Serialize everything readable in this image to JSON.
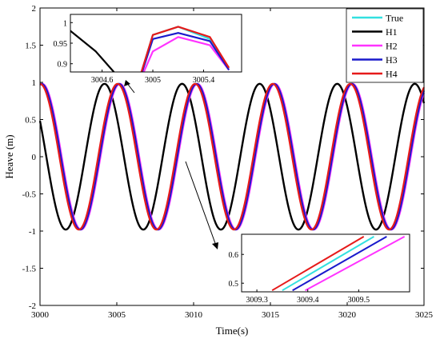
{
  "chart_data": {
    "type": "line",
    "xlabel": "Time(s)",
    "ylabel": "Heave (m)",
    "xlim": [
      3000,
      3025
    ],
    "ylim": [
      -2,
      2
    ],
    "xticks": [
      3000,
      3005,
      3010,
      3015,
      3020,
      3025
    ],
    "yticks": [
      -2,
      -1.5,
      -1,
      -0.5,
      0,
      0.5,
      1,
      1.5,
      2
    ],
    "grid": false,
    "legend_position": "top-right",
    "wave": {
      "amplitude": 0.98,
      "period_s": 5.05,
      "samples": [
        {
          "x": 3000.0,
          "y": 0.97
        },
        {
          "x": 3001.26,
          "y": 0.0
        },
        {
          "x": 3002.52,
          "y": -0.98
        },
        {
          "x": 3003.79,
          "y": 0.0
        },
        {
          "x": 3005.05,
          "y": 0.98
        }
      ]
    },
    "series": [
      {
        "name": "True",
        "color": "#33e0e0",
        "peak_times": [
          3000.05,
          3005.1,
          3010.15,
          3015.2,
          3020.25
        ]
      },
      {
        "name": "H1",
        "color": "#000000",
        "peak_times": [
          3004.2,
          3009.25,
          3014.3,
          3019.35,
          3024.4
        ]
      },
      {
        "name": "H2",
        "color": "#ff33ff",
        "peak_times": [
          3000.15,
          3005.2,
          3010.25,
          3015.3,
          3020.35
        ]
      },
      {
        "name": "H3",
        "color": "#1a1acc",
        "peak_times": [
          3000.1,
          3005.15,
          3010.2,
          3015.25,
          3020.3
        ]
      },
      {
        "name": "H4",
        "color": "#e61a1a",
        "peak_times": [
          3000.0,
          3005.05,
          3010.1,
          3015.15,
          3020.2
        ]
      }
    ],
    "insets": [
      {
        "position": "top-left",
        "xlim": [
          3004.35,
          3005.7
        ],
        "ylim": [
          0.88,
          1.02
        ],
        "xticks": [
          3004.6,
          3005,
          3005.4
        ],
        "yticks": [
          0.9,
          0.95,
          1
        ],
        "series": [
          {
            "name": "H1",
            "x": [
              3004.35,
              3004.55,
              3004.75
            ],
            "y": [
              0.98,
              0.93,
              0.86
            ]
          },
          {
            "name": "True",
            "x": [
              3004.9,
              3005.0,
              3005.2,
              3005.45,
              3005.6
            ],
            "y": [
              0.87,
              0.97,
              0.99,
              0.96,
              0.89
            ]
          },
          {
            "name": "H2",
            "x": [
              3004.9,
              3005.0,
              3005.2,
              3005.45,
              3005.6
            ],
            "y": [
              0.86,
              0.93,
              0.965,
              0.945,
              0.885
            ]
          },
          {
            "name": "H3",
            "x": [
              3004.9,
              3005.0,
              3005.2,
              3005.45,
              3005.6
            ],
            "y": [
              0.865,
              0.96,
              0.975,
              0.955,
              0.885
            ]
          },
          {
            "name": "H4",
            "x": [
              3004.9,
              3005.0,
              3005.2,
              3005.45,
              3005.6
            ],
            "y": [
              0.87,
              0.97,
              0.99,
              0.965,
              0.89
            ]
          }
        ]
      },
      {
        "position": "bottom-right",
        "xlim": [
          3009.27,
          3009.6
        ],
        "ylim": [
          0.47,
          0.67
        ],
        "xticks": [
          3009.3,
          3009.4,
          3009.5
        ],
        "yticks": [
          0.5,
          0.6
        ],
        "series": [
          {
            "name": "H4",
            "x": [
              3009.33,
              3009.51
            ],
            "y": [
              0.475,
              0.662
            ]
          },
          {
            "name": "True",
            "x": [
              3009.35,
              3009.53
            ],
            "y": [
              0.475,
              0.662
            ]
          },
          {
            "name": "H3",
            "x": [
              3009.37,
              3009.555
            ],
            "y": [
              0.475,
              0.662
            ]
          },
          {
            "name": "H2",
            "x": [
              3009.395,
              3009.59
            ],
            "y": [
              0.475,
              0.662
            ]
          }
        ]
      }
    ]
  }
}
